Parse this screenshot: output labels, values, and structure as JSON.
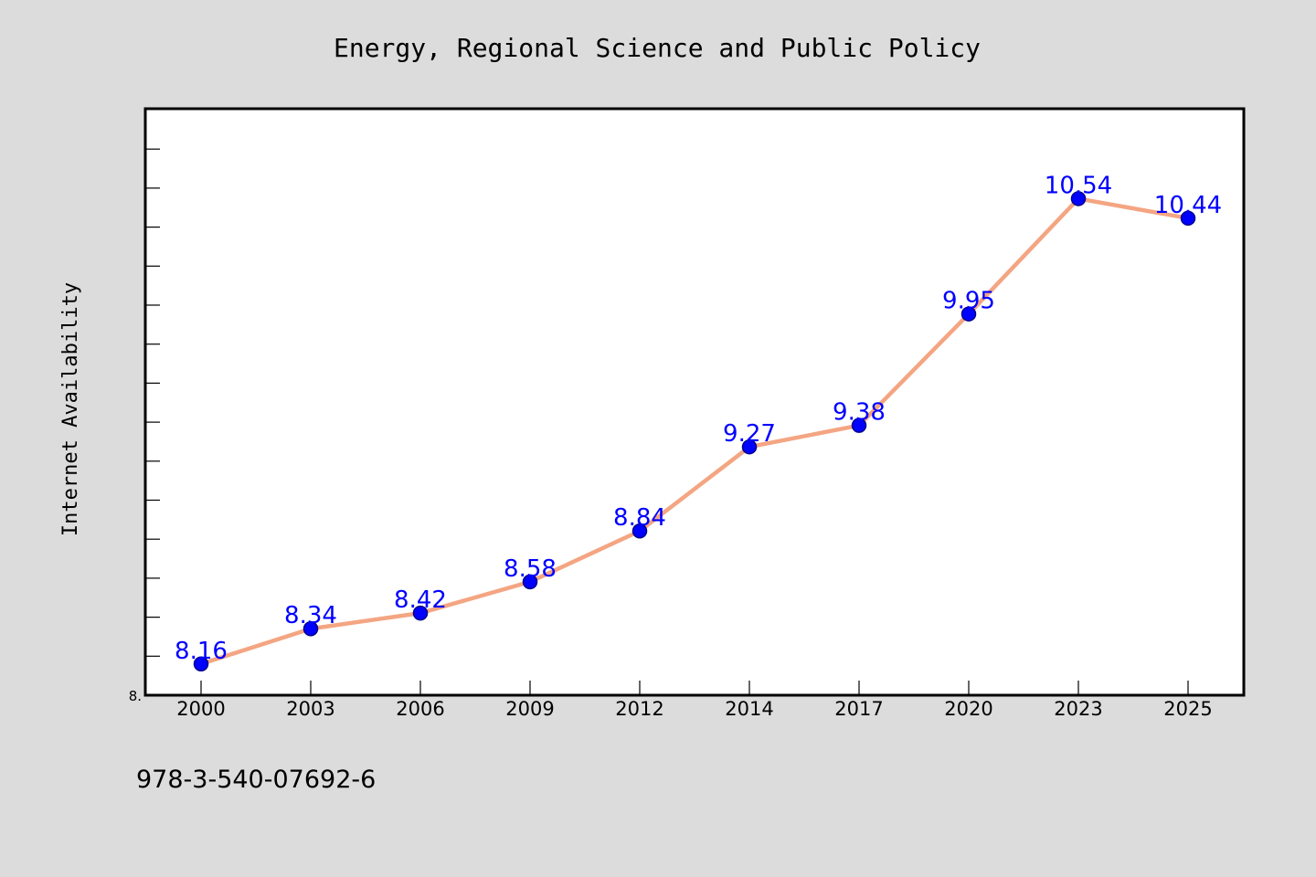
{
  "chart_data": {
    "type": "line",
    "title": "Energy, Regional Science and Public Policy",
    "xlabel": "",
    "ylabel": "Internet Availability",
    "categories": [
      "2000",
      "2003",
      "2006",
      "2009",
      "2012",
      "2014",
      "2017",
      "2020",
      "2023",
      "2025"
    ],
    "series": [
      {
        "values": [
          8.16,
          8.34,
          8.42,
          8.58,
          8.84,
          9.27,
          9.38,
          9.95,
          10.54,
          10.44
        ],
        "data_labels": [
          "8.16",
          "8.34",
          "8.42",
          "8.58",
          "8.84",
          "9.27",
          "9.38",
          "9.95",
          "10.54",
          "10.44"
        ]
      }
    ],
    "ylim": [
      8.0,
      11.0
    ],
    "y_tick_label": "8.",
    "grid": false,
    "legend": "none",
    "colors": {
      "line": "#f4a582",
      "marker": "#0000ff",
      "marker_edge": "#00008b",
      "data_label": "#0000ff",
      "plot_background": "#ffffff",
      "figure_background": "#dcdcdc"
    }
  },
  "footnote": "978-3-540-07692-6"
}
